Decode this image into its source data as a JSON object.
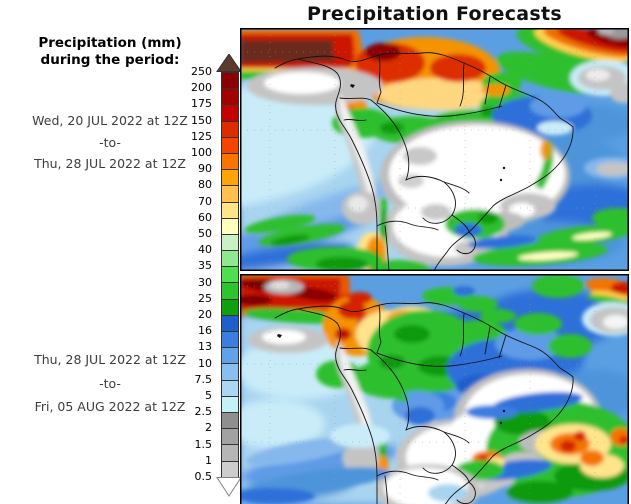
{
  "title": "Precipitation Forecasts",
  "legend": {
    "heading_line1": "Precipitation (mm)",
    "heading_line2": "during the period:",
    "colorbar": {
      "labels": [
        "250",
        "200",
        "175",
        "150",
        "125",
        "100",
        "90",
        "80",
        "70",
        "60",
        "50",
        "40",
        "35",
        "30",
        "25",
        "20",
        "16",
        "13",
        "10",
        "7.5",
        "5",
        "2.5",
        "2",
        "1.5",
        "1",
        "0.5"
      ],
      "segment_colors": [
        "#8B0000",
        "#A30000",
        "#C40000",
        "#DD2D00",
        "#F44400",
        "#FC7400",
        "#FFA405",
        "#FFC04D",
        "#FFE488",
        "#FFFFC0",
        "#C8F2C4",
        "#8FE88F",
        "#4FDE4F",
        "#2EC42E",
        "#0F9F0F",
        "#1F5FCC",
        "#3A7EE0",
        "#62A1E8",
        "#8ABEEF",
        "#ABD7F4",
        "#C3F1F8",
        "#8F8F8F",
        "#A2A2A2",
        "#B6B6B6",
        "#CDCDCD"
      ],
      "overflow_top_color": "#5C3A2E",
      "underflow_bottom_color": "#FFFFFF"
    }
  },
  "panels": [
    {
      "id": "top",
      "period": {
        "start": "Wed, 20 JUL 2022 at 12Z",
        "separator": "-to-",
        "end": "Thu, 28 JUL 2022 at 12Z"
      }
    },
    {
      "id": "bottom",
      "period": {
        "start": "Thu, 28 JUL 2022 at 12Z",
        "separator": "-to-",
        "end": "Fri, 05 AUG 2022 at 12Z"
      }
    }
  ],
  "chart_data": {
    "type": "heatmap",
    "title": "Precipitation Forecasts",
    "variable": "Precipitation (mm) during the period",
    "region_depicted": "South America and adjacent oceans",
    "colorbar_levels_mm": [
      0.5,
      1,
      1.5,
      2,
      2.5,
      5,
      7.5,
      10,
      13,
      16,
      20,
      25,
      30,
      35,
      40,
      50,
      60,
      70,
      80,
      90,
      100,
      125,
      150,
      175,
      200,
      250
    ],
    "colorbar_colors_low_to_high": [
      "#CDCDCD",
      "#B6B6B6",
      "#A2A2A2",
      "#8F8F8F",
      "#C3F1F8",
      "#ABD7F4",
      "#8ABEEF",
      "#62A1E8",
      "#3A7EE0",
      "#1F5FCC",
      "#0F9F0F",
      "#2EC42E",
      "#4FDE4F",
      "#8FE88F",
      "#C8F2C4",
      "#FFFFC0",
      "#FFE488",
      "#FFC04D",
      "#FFA405",
      "#FC7400",
      "#F44400",
      "#DD2D00",
      "#C40000",
      "#A30000",
      "#8B0000"
    ],
    "overflow_color": "#5C3A2E",
    "underflow_color": "#FFFFFF",
    "legend_position": "left",
    "panels": [
      {
        "period_start": "Wed, 20 JUL 2022 at 12Z",
        "period_end": "Thu, 28 JUL 2022 at 12Z",
        "summary": "Heavy rain (100-250+ mm) along ITCZ band and over Colombia/Venezuela; dry (white) central-east Brazil; light rain over oceans; orange Andes streak in southern Chile"
      },
      {
        "period_start": "Thu, 28 JUL 2022 at 12Z",
        "period_end": "Fri, 05 AUG 2022 at 12Z",
        "summary": "Weaker ITCZ band; orange over Colombia; green/blue over northern Amazon; dry southeast Brazil; heavy rain cells over South Atlantic"
      }
    ]
  }
}
